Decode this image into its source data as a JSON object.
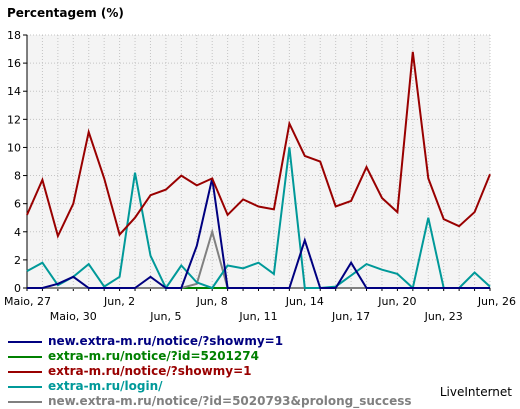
{
  "chart_data": {
    "type": "line",
    "title": "Percentagem (%)",
    "ylim": [
      0,
      18
    ],
    "yticks": [
      0,
      2,
      4,
      6,
      8,
      10,
      12,
      14,
      16,
      18
    ],
    "grid": true,
    "x": [
      "Maio, 27",
      "Maio, 28",
      "Maio, 29",
      "Maio, 30",
      "Maio, 31",
      "Jun, 1",
      "Jun, 2",
      "Jun, 3",
      "Jun, 4",
      "Jun, 5",
      "Jun, 6",
      "Jun, 7",
      "Jun, 8",
      "Jun, 9",
      "Jun, 10",
      "Jun, 11",
      "Jun, 12",
      "Jun, 13",
      "Jun, 14",
      "Jun, 15",
      "Jun, 16",
      "Jun, 17",
      "Jun, 18",
      "Jun, 19",
      "Jun, 20",
      "Jun, 21",
      "Jun, 22",
      "Jun, 23",
      "Jun, 24",
      "Jun, 25",
      "Jun, 26"
    ],
    "xticks_top": [
      {
        "index": 0,
        "label": "Maio, 27"
      },
      {
        "index": 6,
        "label": "Jun, 2"
      },
      {
        "index": 12,
        "label": "Jun, 8"
      },
      {
        "index": 18,
        "label": "Jun, 14"
      },
      {
        "index": 24,
        "label": "Jun, 20"
      },
      {
        "index": 30,
        "label": "Jun, 26"
      }
    ],
    "xticks_bottom": [
      {
        "index": 3,
        "label": "Maio, 30"
      },
      {
        "index": 9,
        "label": "Jun, 5"
      },
      {
        "index": 15,
        "label": "Jun, 11"
      },
      {
        "index": 21,
        "label": "Jun, 17"
      },
      {
        "index": 27,
        "label": "Jun, 23"
      }
    ],
    "series": [
      {
        "name": "new.extra-m.ru/notice/?showmy=1",
        "color": "#000080",
        "values": [
          0,
          0,
          0.3,
          0.8,
          0,
          0,
          0,
          0,
          0.8,
          0,
          0,
          3,
          7.8,
          0,
          0,
          0,
          0,
          0,
          3.4,
          0,
          0,
          1.8,
          0,
          0,
          0,
          0,
          0,
          0,
          0,
          0,
          0
        ]
      },
      {
        "name": "extra-m.ru/notice/?id=5201274",
        "color": "#008000",
        "values": [
          0,
          0,
          0,
          0,
          0,
          0,
          0,
          0,
          0,
          0,
          0,
          0,
          0,
          0,
          0,
          0,
          0,
          0,
          0,
          0,
          0,
          0,
          0,
          0,
          0,
          0,
          0,
          0,
          0,
          0,
          0
        ]
      },
      {
        "name": "extra-m.ru/notice/?showmy=1",
        "color": "#990000",
        "values": [
          5.2,
          7.7,
          3.7,
          6,
          11.1,
          7.8,
          3.8,
          5,
          6.6,
          7,
          8,
          7.3,
          7.8,
          5.2,
          6.3,
          5.8,
          5.6,
          11.7,
          9.4,
          9,
          5.8,
          6.2,
          8.6,
          6.4,
          5.4,
          16.8,
          7.8,
          4.9,
          4.4,
          5.4,
          8.1
        ]
      },
      {
        "name": "extra-m.ru/login/",
        "color": "#009999",
        "values": [
          1.2,
          1.8,
          0.2,
          0.8,
          1.7,
          0.1,
          0.8,
          8.2,
          2.3,
          0,
          1.6,
          0.4,
          0,
          1.6,
          1.4,
          1.8,
          1,
          10,
          0,
          0,
          0.1,
          0.9,
          1.7,
          1.3,
          1,
          0,
          5,
          0,
          0,
          1.1,
          0.1
        ]
      },
      {
        "name": "new.extra-m.ru/notice/?id=5020793&prolong_success",
        "color": "#808080",
        "values": [
          0,
          0,
          0,
          0,
          0,
          0,
          0,
          0,
          0,
          0,
          0,
          0.3,
          4,
          0,
          0,
          0,
          0,
          0,
          0,
          0,
          0,
          0,
          0,
          0,
          0,
          0,
          0,
          0,
          0,
          0,
          0
        ]
      }
    ]
  },
  "brand": "LiveInternet"
}
